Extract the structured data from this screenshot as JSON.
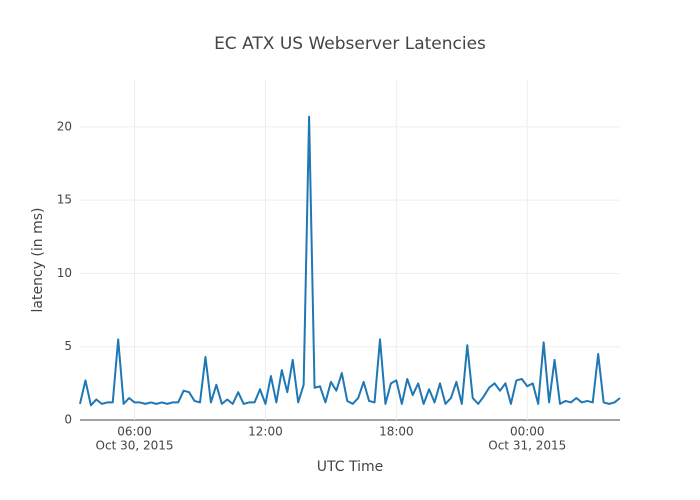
{
  "chart_data": {
    "type": "line",
    "title": "EC ATX US Webserver Latencies",
    "x_label": "UTC Time",
    "y_label": "latency (in ms)",
    "xlim": [
      "2015-10-30T03:30",
      "2015-10-31T04:15"
    ],
    "xticks": [
      {
        "value": "2015-10-30T06:00",
        "label": "06:00",
        "date": "Oct 30, 2015"
      },
      {
        "value": "2015-10-30T12:00",
        "label": "12:00"
      },
      {
        "value": "2015-10-30T18:00",
        "label": "18:00"
      },
      {
        "value": "2015-10-31T00:00",
        "label": "00:00",
        "date": "Oct 31, 2015"
      }
    ],
    "ylim": [
      0,
      23.2
    ],
    "yticks": [
      0,
      5,
      10,
      15,
      20
    ],
    "grid": true,
    "x": [
      "2015-10-30T03:30",
      "2015-10-30T03:45",
      "2015-10-30T04:00",
      "2015-10-30T04:15",
      "2015-10-30T04:30",
      "2015-10-30T04:45",
      "2015-10-30T05:00",
      "2015-10-30T05:15",
      "2015-10-30T05:30",
      "2015-10-30T05:45",
      "2015-10-30T06:00",
      "2015-10-30T06:15",
      "2015-10-30T06:30",
      "2015-10-30T06:45",
      "2015-10-30T07:00",
      "2015-10-30T07:15",
      "2015-10-30T07:30",
      "2015-10-30T07:45",
      "2015-10-30T08:00",
      "2015-10-30T08:15",
      "2015-10-30T08:30",
      "2015-10-30T08:45",
      "2015-10-30T09:00",
      "2015-10-30T09:15",
      "2015-10-30T09:30",
      "2015-10-30T09:45",
      "2015-10-30T10:00",
      "2015-10-30T10:15",
      "2015-10-30T10:30",
      "2015-10-30T10:45",
      "2015-10-30T11:00",
      "2015-10-30T11:15",
      "2015-10-30T11:30",
      "2015-10-30T11:45",
      "2015-10-30T12:00",
      "2015-10-30T12:15",
      "2015-10-30T12:30",
      "2015-10-30T12:45",
      "2015-10-30T13:00",
      "2015-10-30T13:15",
      "2015-10-30T13:30",
      "2015-10-30T13:45",
      "2015-10-30T14:00",
      "2015-10-30T14:15",
      "2015-10-30T14:30",
      "2015-10-30T14:45",
      "2015-10-30T15:00",
      "2015-10-30T15:15",
      "2015-10-30T15:30",
      "2015-10-30T15:45",
      "2015-10-30T16:00",
      "2015-10-30T16:15",
      "2015-10-30T16:30",
      "2015-10-30T16:45",
      "2015-10-30T17:00",
      "2015-10-30T17:15",
      "2015-10-30T17:30",
      "2015-10-30T17:45",
      "2015-10-30T18:00",
      "2015-10-30T18:15",
      "2015-10-30T18:30",
      "2015-10-30T18:45",
      "2015-10-30T19:00",
      "2015-10-30T19:15",
      "2015-10-30T19:30",
      "2015-10-30T19:45",
      "2015-10-30T20:00",
      "2015-10-30T20:15",
      "2015-10-30T20:30",
      "2015-10-30T20:45",
      "2015-10-30T21:00",
      "2015-10-30T21:15",
      "2015-10-30T21:30",
      "2015-10-30T21:45",
      "2015-10-30T22:00",
      "2015-10-30T22:15",
      "2015-10-30T22:30",
      "2015-10-30T22:45",
      "2015-10-30T23:00",
      "2015-10-30T23:15",
      "2015-10-30T23:30",
      "2015-10-30T23:45",
      "2015-10-31T00:00",
      "2015-10-31T00:15",
      "2015-10-31T00:30",
      "2015-10-31T00:45",
      "2015-10-31T01:00",
      "2015-10-31T01:15",
      "2015-10-31T01:30",
      "2015-10-31T01:45",
      "2015-10-31T02:00",
      "2015-10-31T02:15",
      "2015-10-31T02:30",
      "2015-10-31T02:45",
      "2015-10-31T03:00",
      "2015-10-31T03:15",
      "2015-10-31T03:30",
      "2015-10-31T03:45",
      "2015-10-31T04:00",
      "2015-10-31T04:15"
    ],
    "series": [
      {
        "name": "latency",
        "color": "#1f77b4",
        "values": [
          1.1,
          2.7,
          1.0,
          1.4,
          1.1,
          1.2,
          1.2,
          5.5,
          1.1,
          1.5,
          1.2,
          1.2,
          1.1,
          1.2,
          1.1,
          1.2,
          1.1,
          1.2,
          1.2,
          2.0,
          1.9,
          1.3,
          1.2,
          4.3,
          1.2,
          2.4,
          1.1,
          1.4,
          1.1,
          1.9,
          1.1,
          1.2,
          1.2,
          2.1,
          1.1,
          3.0,
          1.2,
          3.4,
          1.9,
          4.1,
          1.2,
          2.4,
          20.7,
          2.2,
          2.3,
          1.2,
          2.6,
          2.0,
          3.2,
          1.3,
          1.1,
          1.5,
          2.6,
          1.3,
          1.2,
          5.5,
          1.1,
          2.5,
          2.7,
          1.1,
          2.8,
          1.7,
          2.5,
          1.1,
          2.1,
          1.2,
          2.5,
          1.1,
          1.5,
          2.6,
          1.1,
          5.1,
          1.5,
          1.1,
          1.6,
          2.2,
          2.5,
          2.0,
          2.5,
          1.1,
          2.7,
          2.8,
          2.3,
          2.5,
          1.1,
          5.3,
          1.2,
          4.1,
          1.1,
          1.3,
          1.2,
          1.5,
          1.2,
          1.3,
          1.2,
          4.5,
          1.2,
          1.1,
          1.2,
          1.5
        ]
      }
    ]
  }
}
